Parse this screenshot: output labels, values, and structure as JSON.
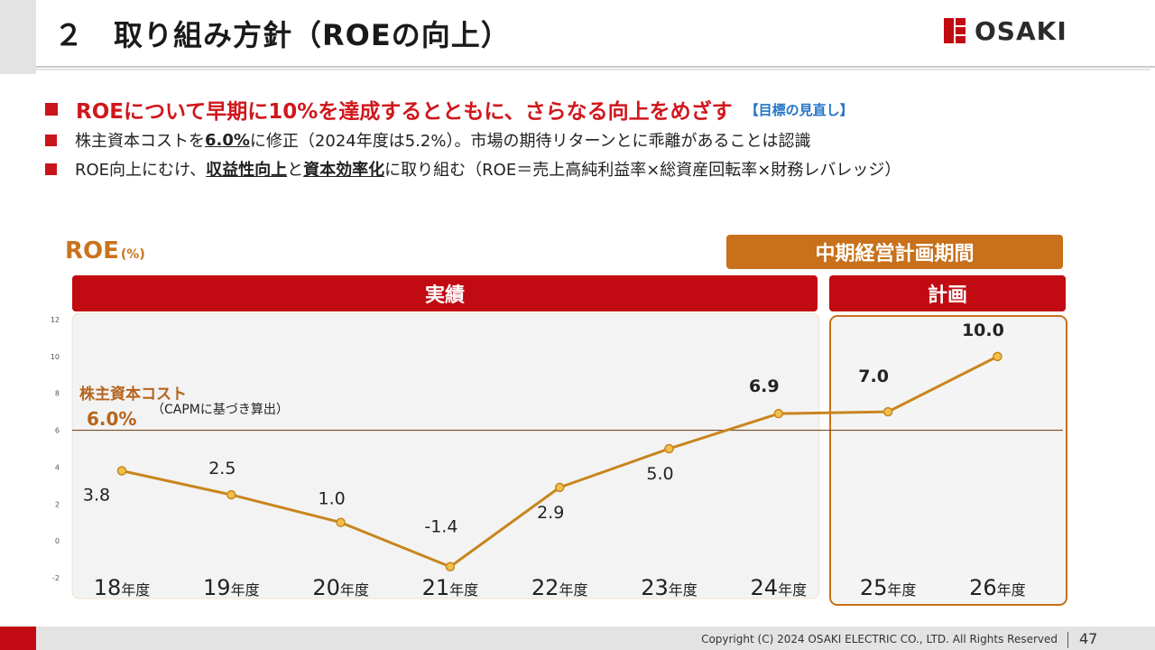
{
  "header": {
    "title": "２　取り組み方針（ROEの向上）",
    "logo_text": "OSAKI"
  },
  "bullets": {
    "main": "ROEについて早期に10%を達成するとともに、さらなる向上をめざす",
    "main_tag": "【目標の見直し】",
    "line2_pre": "株主資本コストを",
    "line2_bold": "6.0%",
    "line2_post": "に修正（2024年度は5.2%）。市場の期待リターンとに乖離があることは認識",
    "line3_a": "ROE向上にむけ、",
    "line3_b": "収益性向上",
    "line3_c": "と",
    "line3_d": "資本効率化",
    "line3_e": "に取り組む（ROE＝売上高純利益率×総資産回転率×財務レバレッジ）"
  },
  "colors": {
    "brand_red": "#c20a12",
    "orange": "#c8701a",
    "line": "#c8861e",
    "ref_line": "#7a4a22"
  },
  "chart_data": {
    "type": "line",
    "title": "ROE",
    "title_unit": "(%)",
    "categories": [
      "18",
      "19",
      "20",
      "21",
      "22",
      "23",
      "24",
      "25",
      "26"
    ],
    "category_suffix": "年度",
    "values": [
      3.8,
      2.5,
      1.0,
      -1.4,
      2.9,
      5.0,
      6.9,
      7.0,
      10.0
    ],
    "value_labels": [
      "3.8",
      "2.5",
      "1.0",
      "-1.4",
      "2.9",
      "5.0",
      "6.9",
      "7.0",
      "10.0"
    ],
    "bold_label_indices": [
      6,
      7,
      8
    ],
    "ylim": [
      -2,
      12
    ],
    "yticks": [
      "12",
      "10",
      "8",
      "6",
      "4",
      "2",
      "0",
      "-2"
    ],
    "reference_line": {
      "value": 6.0,
      "label": "株主資本コスト",
      "value_label": "6.0%",
      "note": "（CAPMに基づき算出）"
    },
    "periods": {
      "actual_label": "実績",
      "plan_label": "計画",
      "midterm_label": "中期経営計画期間"
    },
    "grid": false
  },
  "footer": {
    "copyright": "Copyright (C) 2024 OSAKI ELECTRIC CO., LTD. All Rights Reserved",
    "page": "47"
  }
}
